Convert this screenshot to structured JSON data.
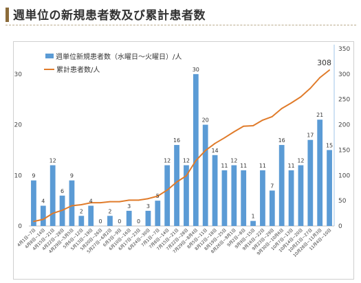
{
  "header": {
    "title": "週単位の新規患者数及び累計患者数"
  },
  "colors": {
    "bar": "#5b9bd5",
    "line": "#e07b2a",
    "header_accent": "#8b6b3a"
  },
  "chart_data": {
    "type": "bar+line",
    "title": "",
    "categories": [
      "4月1日~7日",
      "4月8日~14日",
      "4月15日~21日",
      "4月22日~28日",
      "4月29日~5月5日",
      "5月6日~12日",
      "5月13日~19日",
      "5月20日~26日",
      "5月27日~6月2日",
      "6月3日~9日",
      "6月10日~16日",
      "6月17日~23日",
      "6月24日~30日",
      "7月1日~7日",
      "7月8日~14日",
      "7月15日~21日",
      "7月22日~28日",
      "7月29日~8月4日",
      "8月5日~11日",
      "8月12日~18日",
      "8月19日~25日",
      "8月26日~9月1日",
      "9月2日~8日",
      "9月9日~15日",
      "9月16日~22日",
      "9月23日~29日",
      "9月30日~10月6日",
      "10月7日~13日",
      "10月14日~20日",
      "10月21日~27日",
      "10月28日~11月3日",
      "11月4日~10日"
    ],
    "series": [
      {
        "name": "週単位新規患者数（水曜日～火曜日）/人",
        "type": "bar",
        "axis": "left",
        "values": [
          9,
          4,
          12,
          6,
          9,
          2,
          4,
          0,
          2,
          0,
          3,
          0,
          3,
          5,
          12,
          16,
          12,
          30,
          20,
          14,
          11,
          12,
          11,
          1,
          11,
          7,
          16,
          11,
          12,
          17,
          21,
          15
        ]
      },
      {
        "name": "累計患者数/人",
        "type": "line",
        "axis": "right",
        "values": [
          9,
          13,
          25,
          31,
          40,
          42,
          46,
          46,
          48,
          48,
          51,
          51,
          54,
          59,
          71,
          87,
          99,
          129,
          149,
          163,
          174,
          186,
          197,
          198,
          209,
          216,
          232,
          243,
          255,
          272,
          293,
          308
        ]
      }
    ],
    "y_left": {
      "min": 0,
      "max": 35,
      "ticks": [
        0,
        10,
        20,
        30
      ]
    },
    "y_right": {
      "min": 0,
      "max": 350,
      "ticks": [
        0,
        50,
        100,
        150,
        200,
        250,
        300,
        350
      ]
    },
    "end_label": "308",
    "legend": "top-left",
    "grid": false
  }
}
